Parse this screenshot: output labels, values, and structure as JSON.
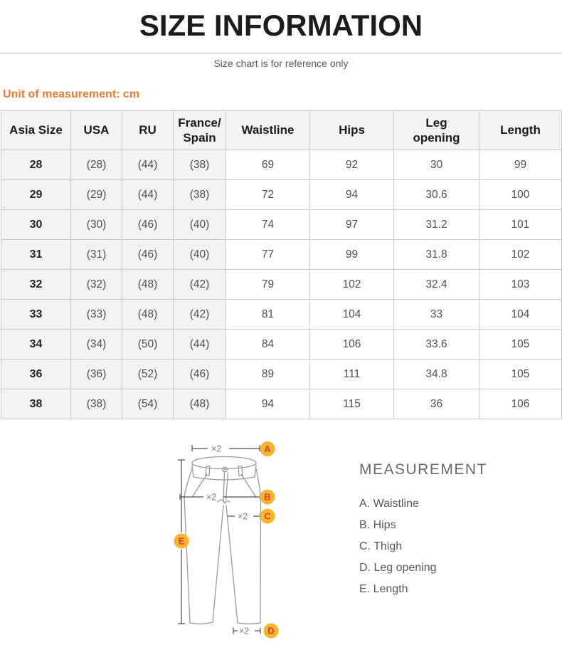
{
  "page": {
    "title": "SIZE INFORMATION",
    "subtitle": "Size chart is for reference only",
    "unit_note": "Unit of measurement: cm"
  },
  "size_table": {
    "columns": [
      "Asia Size",
      "USA",
      "RU",
      "France/\nSpain",
      "Waistline",
      "Hips",
      "Leg\nopening",
      "Length"
    ],
    "rows": [
      [
        "28",
        "(28)",
        "(44)",
        "(38)",
        "69",
        "92",
        "30",
        "99"
      ],
      [
        "29",
        "(29)",
        "(44)",
        "(38)",
        "72",
        "94",
        "30.6",
        "100"
      ],
      [
        "30",
        "(30)",
        "(46)",
        "(40)",
        "74",
        "97",
        "31.2",
        "101"
      ],
      [
        "31",
        "(31)",
        "(46)",
        "(40)",
        "77",
        "99",
        "31.8",
        "102"
      ],
      [
        "32",
        "(32)",
        "(48)",
        "(42)",
        "79",
        "102",
        "32.4",
        "103"
      ],
      [
        "33",
        "(33)",
        "(48)",
        "(42)",
        "81",
        "104",
        "33",
        "104"
      ],
      [
        "34",
        "(34)",
        "(50)",
        "(44)",
        "84",
        "106",
        "33.6",
        "105"
      ],
      [
        "36",
        "(36)",
        "(52)",
        "(46)",
        "89",
        "111",
        "34.8",
        "105"
      ],
      [
        "38",
        "(38)",
        "(54)",
        "(48)",
        "94",
        "115",
        "36",
        "106"
      ]
    ]
  },
  "diagram": {
    "multiplier_label": "×2",
    "markers": [
      "A",
      "B",
      "C",
      "D",
      "E"
    ]
  },
  "legend": {
    "heading": "MEASUREMENT",
    "items": [
      "A. Waistline",
      "B. Hips",
      "C. Thigh",
      "D. Leg opening",
      "E. Length"
    ]
  },
  "colors": {
    "accent_orange": "#ED7D31",
    "marker_fill": "#F7B52C",
    "marker_letter": "#E23B3B",
    "garment_line": "#9A9A9A",
    "measure_line": "#4D4D4D"
  }
}
